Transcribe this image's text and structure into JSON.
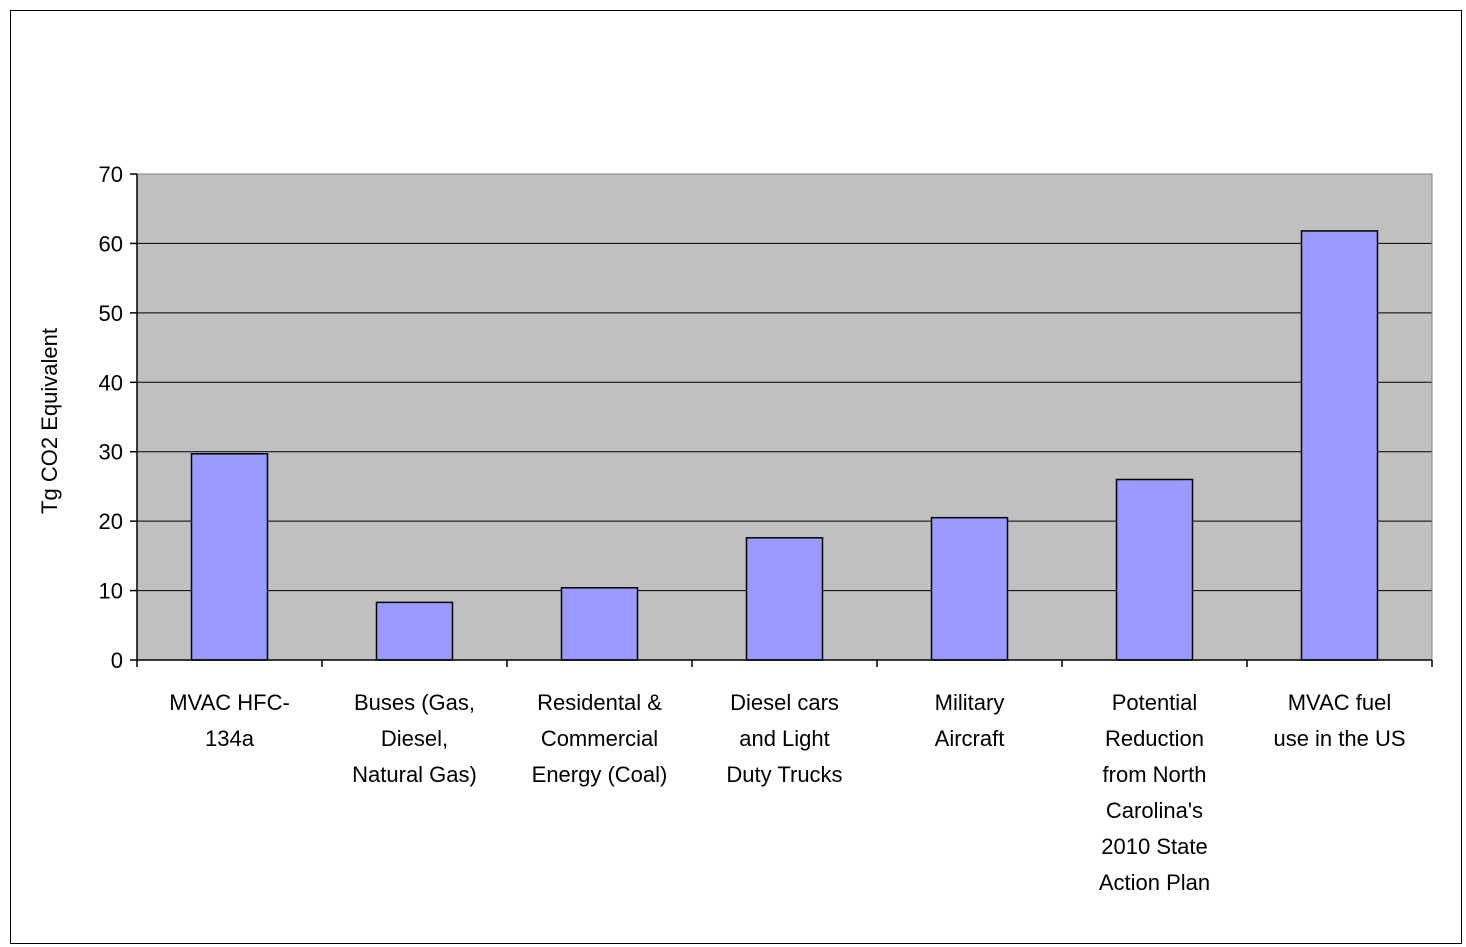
{
  "chart_data": {
    "type": "bar",
    "title": "",
    "xlabel": "",
    "ylabel": "Tg CO2 Equivalent",
    "ylim": [
      0,
      70
    ],
    "yticks": [
      0,
      10,
      20,
      30,
      40,
      50,
      60,
      70
    ],
    "grid": true,
    "legend": "none",
    "categories": [
      [
        "MVAC HFC-",
        "134a"
      ],
      [
        "Buses (Gas,",
        "Diesel,",
        "Natural Gas)"
      ],
      [
        "Residental &",
        "Commercial",
        "Energy (Coal)"
      ],
      [
        "Diesel cars",
        "and Light",
        "Duty Trucks"
      ],
      [
        "Military",
        "Aircraft"
      ],
      [
        "Potential",
        "Reduction",
        "from North",
        "Carolina's",
        "2010 State",
        "Action Plan"
      ],
      [
        "MVAC fuel",
        "use in the US"
      ]
    ],
    "values": [
      29.7,
      8.3,
      10.4,
      17.6,
      20.5,
      26.0,
      61.8
    ],
    "colors": {
      "bar": "#9999ff",
      "plot_bg": "#c0c0c0",
      "grid": "#000000",
      "axis": "#000000"
    }
  }
}
